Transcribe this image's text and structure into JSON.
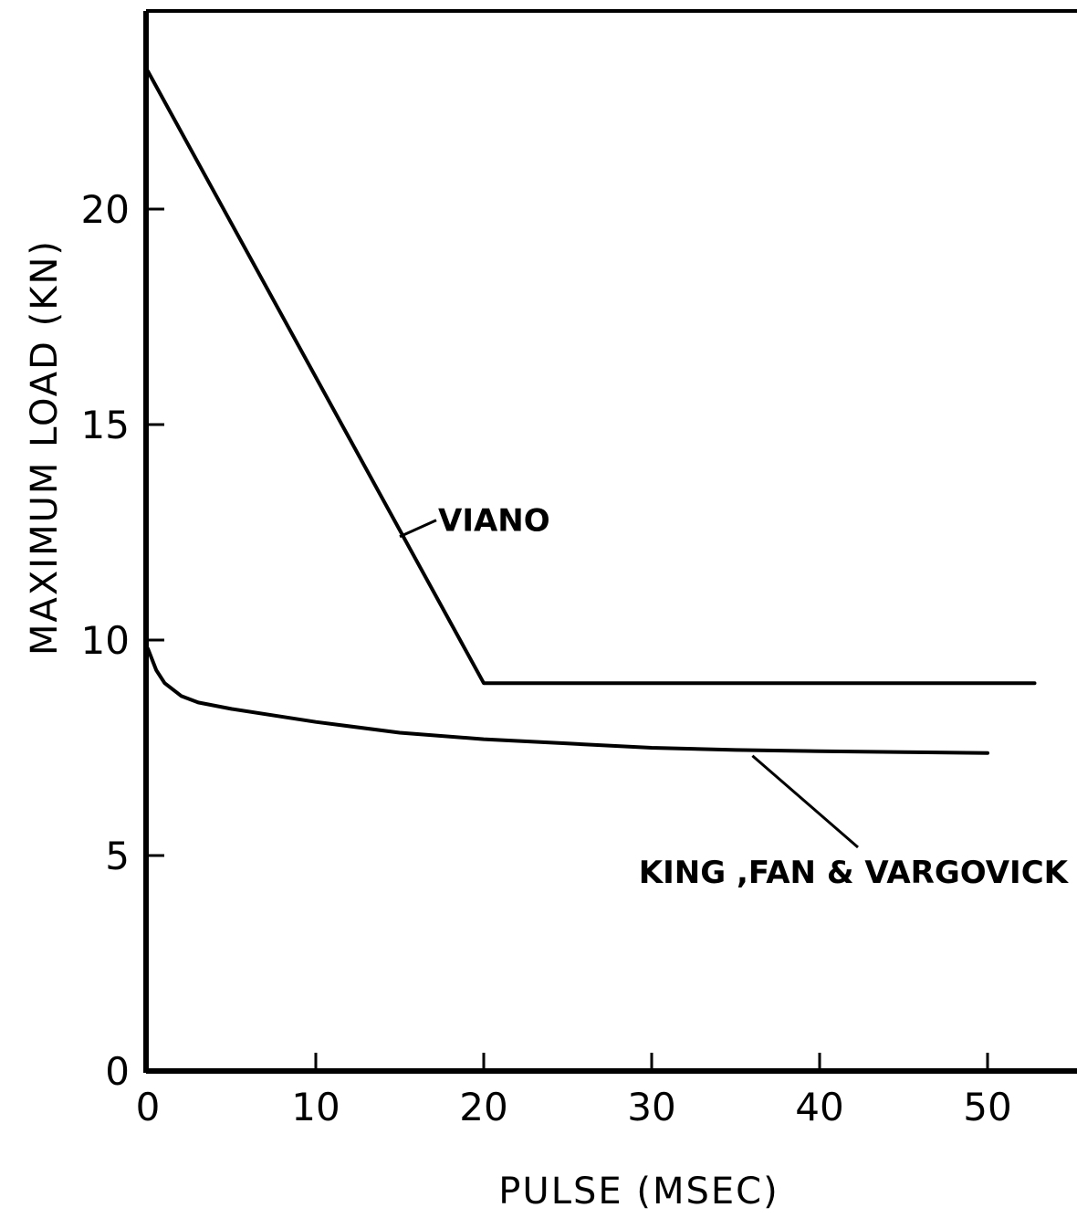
{
  "chart_data": {
    "type": "line",
    "xlabel": "PULSE (MSEC)",
    "ylabel": "MAXIMUM LOAD (KN)",
    "xlim": [
      0,
      55
    ],
    "ylim": [
      0,
      24.5
    ],
    "x_ticks": [
      0,
      10,
      20,
      30,
      40,
      50
    ],
    "y_ticks": [
      0,
      5,
      10,
      15,
      20
    ],
    "grid": false,
    "legend": "none",
    "series": [
      {
        "name": "VIANO",
        "x": [
          0,
          20,
          52.8
        ],
        "y": [
          23.2,
          9.0,
          9.0
        ]
      },
      {
        "name": "KING ,FAN & VARGOVICK",
        "x": [
          0,
          0.5,
          1,
          2,
          3,
          5,
          10,
          15,
          20,
          25,
          30,
          35,
          40,
          45,
          50
        ],
        "y": [
          9.8,
          9.3,
          9.0,
          8.7,
          8.55,
          8.4,
          8.1,
          7.85,
          7.7,
          7.6,
          7.5,
          7.45,
          7.42,
          7.4,
          7.38
        ]
      }
    ],
    "annotations": [
      {
        "text": "VIANO",
        "series": 0,
        "anchor_x": 15.0,
        "anchor_y": 12.4
      },
      {
        "text": "KING ,FAN & VARGOVICK",
        "series": 1,
        "anchor_x": 36.0,
        "anchor_y": 7.4
      }
    ]
  }
}
